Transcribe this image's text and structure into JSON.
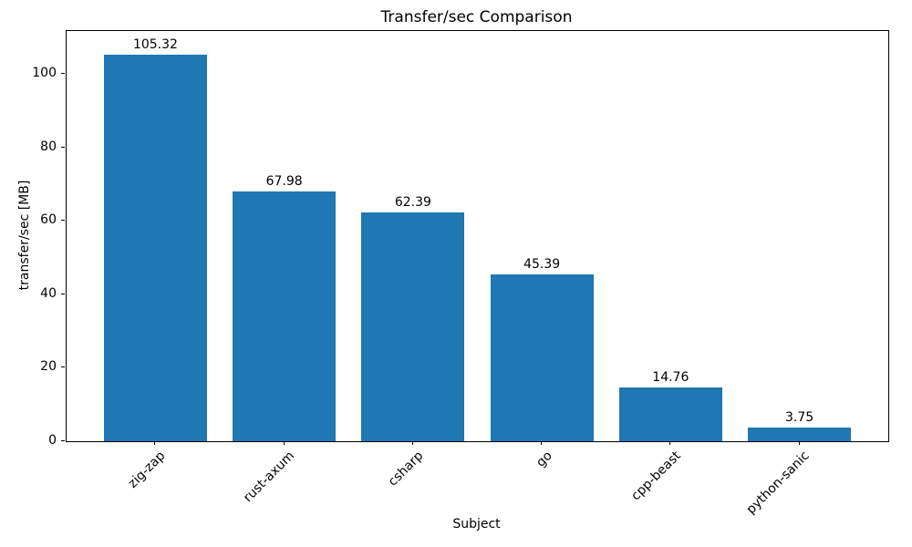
{
  "chart_data": {
    "type": "bar",
    "title": "Transfer/sec Comparison",
    "xlabel": "Subject",
    "ylabel": "transfer/sec [MB]",
    "categories": [
      "zig-zap",
      "rust-axum",
      "csharp",
      "go",
      "cpp-beast",
      "python-sanic"
    ],
    "values": [
      105.32,
      67.98,
      62.39,
      45.39,
      14.76,
      3.75
    ],
    "bar_labels": [
      "105.32",
      "67.98",
      "62.39",
      "45.39",
      "14.76",
      "3.75"
    ],
    "yticks": [
      0,
      20,
      40,
      60,
      80,
      100
    ],
    "ylim": [
      0,
      111.7
    ],
    "bar_color": "#1f77b4",
    "axis_color": "#000000",
    "grid": false,
    "legend_position": "none",
    "x_tick_rotation_deg": 45
  }
}
